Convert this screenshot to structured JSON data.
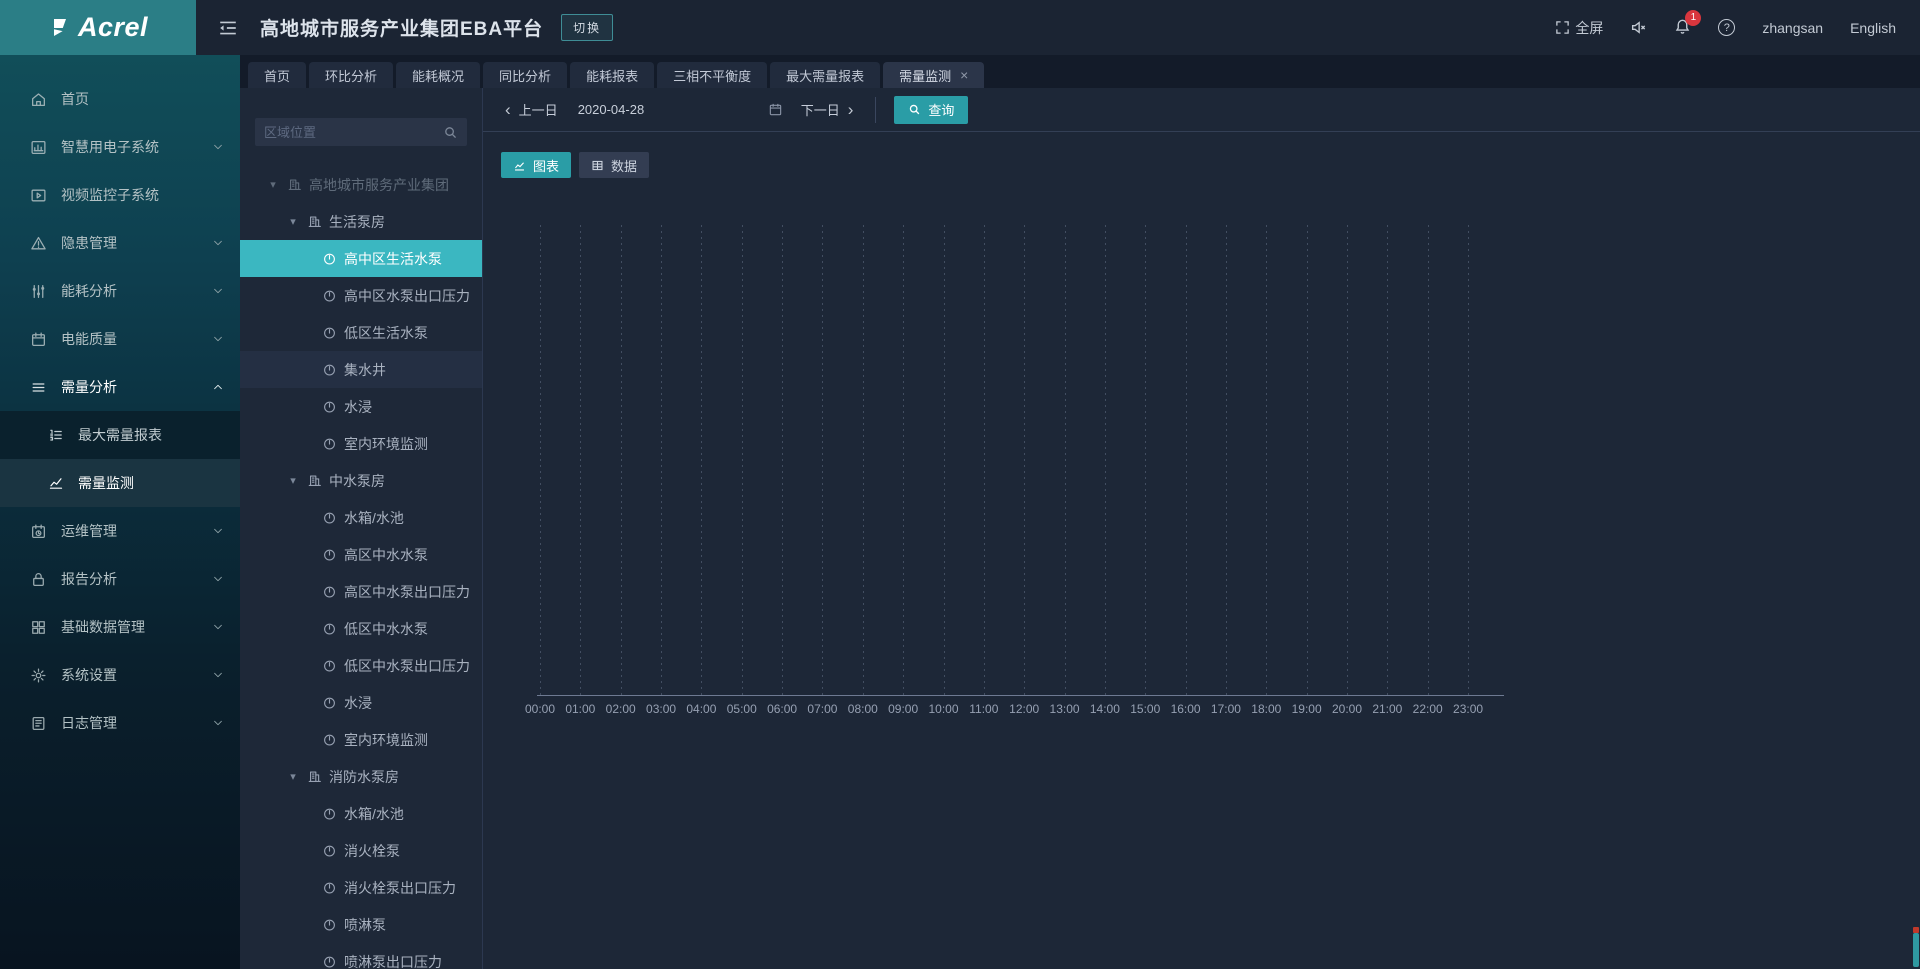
{
  "header": {
    "logo": "Acrel",
    "title": "高地城市服务产业集团EBA平台",
    "switch_label": "切换",
    "fullscreen_label": "全屏",
    "notification_count": "1",
    "username": "zhangsan",
    "language_label": "English"
  },
  "tabs": [
    {
      "label": "首页"
    },
    {
      "label": "环比分析"
    },
    {
      "label": "能耗概况"
    },
    {
      "label": "同比分析"
    },
    {
      "label": "能耗报表"
    },
    {
      "label": "三相不平衡度"
    },
    {
      "label": "最大需量报表"
    },
    {
      "label": "需量监测",
      "active": true,
      "closable": true
    }
  ],
  "sidebar": {
    "items": [
      {
        "label": "首页",
        "icon": "home"
      },
      {
        "label": "智慧用电子系统",
        "icon": "chart",
        "expandable": true
      },
      {
        "label": "视频监控子系统",
        "icon": "video"
      },
      {
        "label": "隐患管理",
        "icon": "warning",
        "expandable": true
      },
      {
        "label": "能耗分析",
        "icon": "sliders",
        "expandable": true
      },
      {
        "label": "电能质量",
        "icon": "calendar",
        "expandable": true
      },
      {
        "label": "需量分析",
        "icon": "list",
        "expandable": true,
        "expanded": true,
        "active": true,
        "children": [
          {
            "label": "最大需量报表",
            "icon": "list-ordered"
          },
          {
            "label": "需量监测",
            "icon": "trend",
            "active": true
          }
        ]
      },
      {
        "label": "运维管理",
        "icon": "ops",
        "expandable": true
      },
      {
        "label": "报告分析",
        "icon": "lock",
        "expandable": true
      },
      {
        "label": "基础数据管理",
        "icon": "grid",
        "expandable": true
      },
      {
        "label": "系统设置",
        "icon": "gear",
        "expandable": true
      },
      {
        "label": "日志管理",
        "icon": "log",
        "expandable": true
      }
    ]
  },
  "tree": {
    "search_placeholder": "区域位置",
    "nodes": [
      {
        "depth": 0,
        "caret": true,
        "icon": "org",
        "label": "高地城市服务产业集团",
        "muted": true
      },
      {
        "depth": 1,
        "caret": true,
        "icon": "org",
        "label": "生活泵房"
      },
      {
        "depth": 2,
        "icon": "gauge",
        "label": "高中区生活水泵",
        "selected": true
      },
      {
        "depth": 2,
        "icon": "gauge",
        "label": "高中区水泵出口压力"
      },
      {
        "depth": 2,
        "icon": "gauge",
        "label": "低区生活水泵"
      },
      {
        "depth": 2,
        "icon": "gauge",
        "label": "集水井",
        "hover": true
      },
      {
        "depth": 2,
        "icon": "gauge",
        "label": "水浸"
      },
      {
        "depth": 2,
        "icon": "gauge",
        "label": "室内环境监测"
      },
      {
        "depth": 1,
        "caret": true,
        "icon": "org",
        "label": "中水泵房"
      },
      {
        "depth": 2,
        "icon": "gauge",
        "label": "水箱/水池"
      },
      {
        "depth": 2,
        "icon": "gauge",
        "label": "高区中水水泵"
      },
      {
        "depth": 2,
        "icon": "gauge",
        "label": "高区中水泵出口压力"
      },
      {
        "depth": 2,
        "icon": "gauge",
        "label": "低区中水水泵"
      },
      {
        "depth": 2,
        "icon": "gauge",
        "label": "低区中水泵出口压力"
      },
      {
        "depth": 2,
        "icon": "gauge",
        "label": "水浸"
      },
      {
        "depth": 2,
        "icon": "gauge",
        "label": "室内环境监测"
      },
      {
        "depth": 1,
        "caret": true,
        "icon": "org",
        "label": "消防水泵房"
      },
      {
        "depth": 2,
        "icon": "gauge",
        "label": "水箱/水池"
      },
      {
        "depth": 2,
        "icon": "gauge",
        "label": "消火栓泵"
      },
      {
        "depth": 2,
        "icon": "gauge",
        "label": "消火栓泵出口压力"
      },
      {
        "depth": 2,
        "icon": "gauge",
        "label": "喷淋泵"
      },
      {
        "depth": 2,
        "icon": "gauge",
        "label": "喷淋泵出口压力"
      }
    ]
  },
  "toolbar": {
    "prev_label": "上一日",
    "date_value": "2020-04-28",
    "next_label": "下一日",
    "query_label": "查询"
  },
  "view_toggle": {
    "chart_label": "图表",
    "data_label": "数据"
  },
  "chart_data": {
    "type": "line",
    "x_ticks": [
      "00:00",
      "01:00",
      "02:00",
      "03:00",
      "04:00",
      "05:00",
      "06:00",
      "07:00",
      "08:00",
      "09:00",
      "10:00",
      "11:00",
      "12:00",
      "13:00",
      "14:00",
      "15:00",
      "16:00",
      "17:00",
      "18:00",
      "19:00",
      "20:00",
      "21:00",
      "22:00",
      "23:00"
    ],
    "series": [],
    "grid": "vertical-dotted",
    "legend": "none"
  },
  "colors": {
    "accent": "#2a9da6",
    "selected_node": "#3bb7c1",
    "badge": "#d9363e",
    "logo_bg": "#2b7e86"
  }
}
